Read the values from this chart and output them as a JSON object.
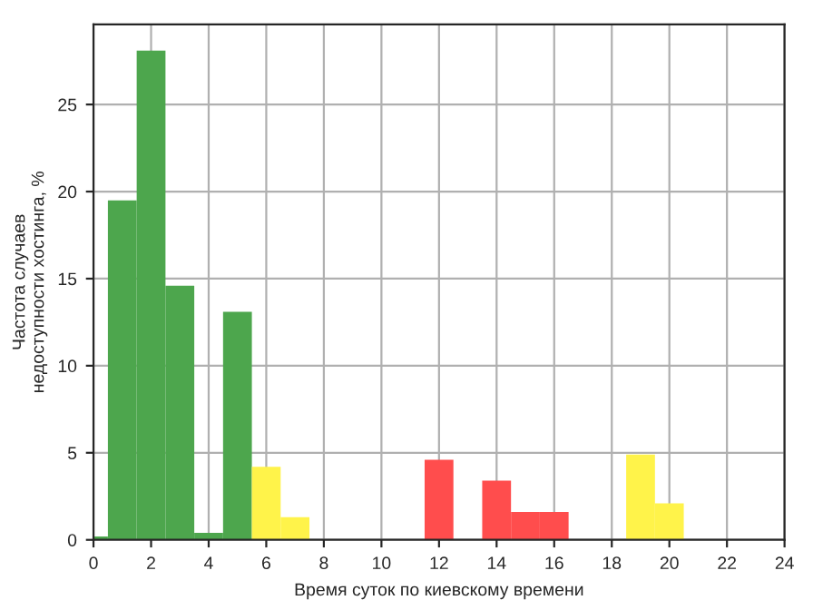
{
  "chart_data": {
    "type": "bar",
    "x": [
      0,
      1,
      2,
      3,
      4,
      5,
      6,
      7,
      8,
      9,
      10,
      11,
      12,
      13,
      14,
      15,
      16,
      17,
      18,
      19,
      20,
      21,
      22,
      23
    ],
    "values": [
      0.2,
      19.5,
      28.1,
      14.6,
      0.4,
      13.1,
      4.2,
      1.3,
      0,
      0,
      0,
      0,
      4.6,
      0,
      3.4,
      1.6,
      1.6,
      0,
      0,
      4.9,
      2.1,
      0,
      0,
      0
    ],
    "colors": [
      "#4da64d",
      "#4da64d",
      "#4da64d",
      "#4da64d",
      "#4da64d",
      "#4da64d",
      "#fff34a",
      "#fff34a",
      "#fff34a",
      "#fff34a",
      "#ff4d4d",
      "#ff4d4d",
      "#ff4d4d",
      "#ff4d4d",
      "#ff4d4d",
      "#ff4d4d",
      "#ff4d4d",
      "#ff4d4d",
      "#fff34a",
      "#fff34a",
      "#fff34a",
      "#fff34a",
      "#4da64d",
      "#4da64d"
    ],
    "xlabel": "Время суток по киевскому времени",
    "ylabel": "Частота случаев\nнедоступности хостинга, %",
    "xlim": [
      0,
      24
    ],
    "xticks": [
      0,
      2,
      4,
      6,
      8,
      10,
      12,
      14,
      16,
      18,
      20,
      22,
      24
    ],
    "ylim": [
      0,
      29.6
    ],
    "yticks": [
      0,
      5,
      10,
      15,
      20,
      25
    ],
    "grid": true
  }
}
